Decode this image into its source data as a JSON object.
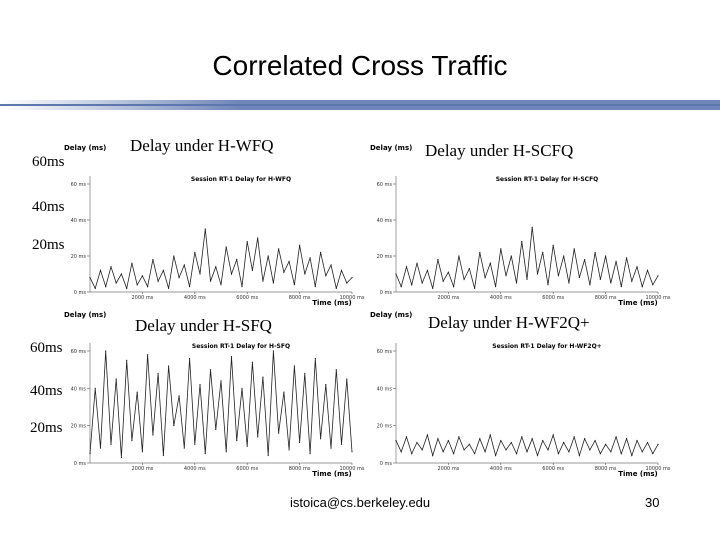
{
  "slide": {
    "title": "Correlated Cross Traffic",
    "footer_email": "istoica@cs.berkeley.edu",
    "page_number": "30",
    "left_labels_top": [
      "60ms",
      "40ms",
      "20ms"
    ],
    "left_labels_bottom": [
      "60ms",
      "40ms",
      "20ms"
    ]
  },
  "chart_data": [
    {
      "type": "line",
      "panel_title": "Delay under H-WFQ",
      "session_title": "Session RT-1 Delay for H-WFQ",
      "ylabel": "Delay (ms)",
      "xlabel": "Time (ms)",
      "xlim": [
        0,
        10000
      ],
      "ylim": [
        0,
        60
      ],
      "x_ticks": [
        "2000 ms",
        "4000 ms",
        "6000 ms",
        "8000 ms",
        "10000 ms"
      ],
      "y_ticks": [
        "0 ms",
        "20 ms",
        "40 ms",
        "60 ms"
      ],
      "x": [
        0,
        200,
        400,
        600,
        800,
        1000,
        1200,
        1400,
        1600,
        1800,
        2000,
        2200,
        2400,
        2600,
        2800,
        3000,
        3200,
        3400,
        3600,
        3800,
        4000,
        4200,
        4400,
        4600,
        4800,
        5000,
        5200,
        5400,
        5600,
        5800,
        6000,
        6200,
        6400,
        6600,
        6800,
        7000,
        7200,
        7400,
        7600,
        7800,
        8000,
        8200,
        8400,
        8600,
        8800,
        9000,
        9200,
        9400,
        9600,
        9800,
        10000
      ],
      "values": [
        8,
        2,
        12,
        3,
        14,
        5,
        10,
        2,
        16,
        4,
        9,
        3,
        18,
        6,
        12,
        2,
        20,
        8,
        15,
        3,
        22,
        10,
        35,
        6,
        14,
        4,
        25,
        10,
        18,
        3,
        28,
        12,
        30,
        6,
        20,
        5,
        24,
        11,
        17,
        4,
        26,
        10,
        19,
        3,
        22,
        9,
        15,
        2,
        12,
        5,
        8
      ]
    },
    {
      "type": "line",
      "panel_title": "Delay under H-SCFQ",
      "session_title": "Session RT-1 Delay for H-SCFQ",
      "ylabel": "Delay (ms)",
      "xlabel": "Time (ms)",
      "xlim": [
        0,
        10000
      ],
      "ylim": [
        0,
        60
      ],
      "x_ticks": [
        "2000 ms",
        "4000 ms",
        "6000 ms",
        "8000 ms",
        "10000 ms"
      ],
      "y_ticks": [
        "0 ms",
        "20 ms",
        "40 ms",
        "60 ms"
      ],
      "x": [
        0,
        200,
        400,
        600,
        800,
        1000,
        1200,
        1400,
        1600,
        1800,
        2000,
        2200,
        2400,
        2600,
        2800,
        3000,
        3200,
        3400,
        3600,
        3800,
        4000,
        4200,
        4400,
        4600,
        4800,
        5000,
        5200,
        5400,
        5600,
        5800,
        6000,
        6200,
        6400,
        6600,
        6800,
        7000,
        7200,
        7400,
        7600,
        7800,
        8000,
        8200,
        8400,
        8600,
        8800,
        9000,
        9200,
        9400,
        9600,
        9800,
        10000
      ],
      "values": [
        10,
        3,
        14,
        4,
        16,
        5,
        12,
        2,
        18,
        6,
        11,
        3,
        20,
        7,
        13,
        2,
        22,
        8,
        16,
        3,
        24,
        9,
        20,
        5,
        28,
        7,
        36,
        10,
        22,
        4,
        26,
        9,
        20,
        5,
        24,
        8,
        18,
        4,
        22,
        7,
        20,
        5,
        17,
        3,
        19,
        6,
        14,
        3,
        12,
        4,
        9
      ]
    },
    {
      "type": "line",
      "panel_title": "Delay under H-SFQ",
      "session_title": "Session RT-1 Delay for H-SFQ",
      "ylabel": "Delay (ms)",
      "xlabel": "Time (ms)",
      "xlim": [
        0,
        10000
      ],
      "ylim": [
        0,
        60
      ],
      "x_ticks": [
        "2000 ms",
        "4000 ms",
        "6000 ms",
        "8000 ms",
        "10000 ms"
      ],
      "y_ticks": [
        "0 ms",
        "20 ms",
        "40 ms",
        "60 ms"
      ],
      "x": [
        0,
        200,
        400,
        600,
        800,
        1000,
        1200,
        1400,
        1600,
        1800,
        2000,
        2200,
        2400,
        2600,
        2800,
        3000,
        3200,
        3400,
        3600,
        3800,
        4000,
        4200,
        4400,
        4600,
        4800,
        5000,
        5200,
        5400,
        5600,
        5800,
        6000,
        6200,
        6400,
        6600,
        6800,
        7000,
        7200,
        7400,
        7600,
        7800,
        8000,
        8200,
        8400,
        8600,
        8800,
        9000,
        9200,
        9400,
        9600,
        9800,
        10000
      ],
      "values": [
        5,
        40,
        8,
        60,
        10,
        45,
        3,
        55,
        12,
        38,
        6,
        58,
        15,
        48,
        4,
        52,
        20,
        36,
        8,
        56,
        10,
        42,
        5,
        50,
        18,
        44,
        6,
        57,
        12,
        40,
        9,
        54,
        14,
        46,
        4,
        60,
        16,
        38,
        7,
        52,
        11,
        48,
        5,
        56,
        13,
        42,
        8,
        50,
        10,
        45,
        6
      ]
    },
    {
      "type": "line",
      "panel_title": "Delay under H-WF2Q+",
      "session_title": "Session RT-1 Delay for H-WF2Q+",
      "ylabel": "Delay (ms)",
      "xlabel": "Time (ms)",
      "xlim": [
        0,
        10000
      ],
      "ylim": [
        0,
        60
      ],
      "x_ticks": [
        "2000 ms",
        "4000 ms",
        "6000 ms",
        "8000 ms",
        "10000 ms"
      ],
      "y_ticks": [
        "0 ms",
        "20 ms",
        "40 ms",
        "60 ms"
      ],
      "x": [
        0,
        200,
        400,
        600,
        800,
        1000,
        1200,
        1400,
        1600,
        1800,
        2000,
        2200,
        2400,
        2600,
        2800,
        3000,
        3200,
        3400,
        3600,
        3800,
        4000,
        4200,
        4400,
        4600,
        4800,
        5000,
        5200,
        5400,
        5600,
        5800,
        6000,
        6200,
        6400,
        6600,
        6800,
        7000,
        7200,
        7400,
        7600,
        7800,
        8000,
        8200,
        8400,
        8600,
        8800,
        9000,
        9200,
        9400,
        9600,
        9800,
        10000
      ],
      "values": [
        12,
        6,
        14,
        5,
        11,
        7,
        15,
        4,
        13,
        6,
        12,
        5,
        14,
        7,
        10,
        5,
        13,
        6,
        15,
        4,
        12,
        7,
        11,
        5,
        14,
        6,
        13,
        4,
        12,
        7,
        15,
        5,
        11,
        6,
        14,
        4,
        13,
        7,
        12,
        5,
        10,
        6,
        14,
        5,
        13,
        4,
        12,
        6,
        11,
        5,
        10
      ]
    }
  ]
}
